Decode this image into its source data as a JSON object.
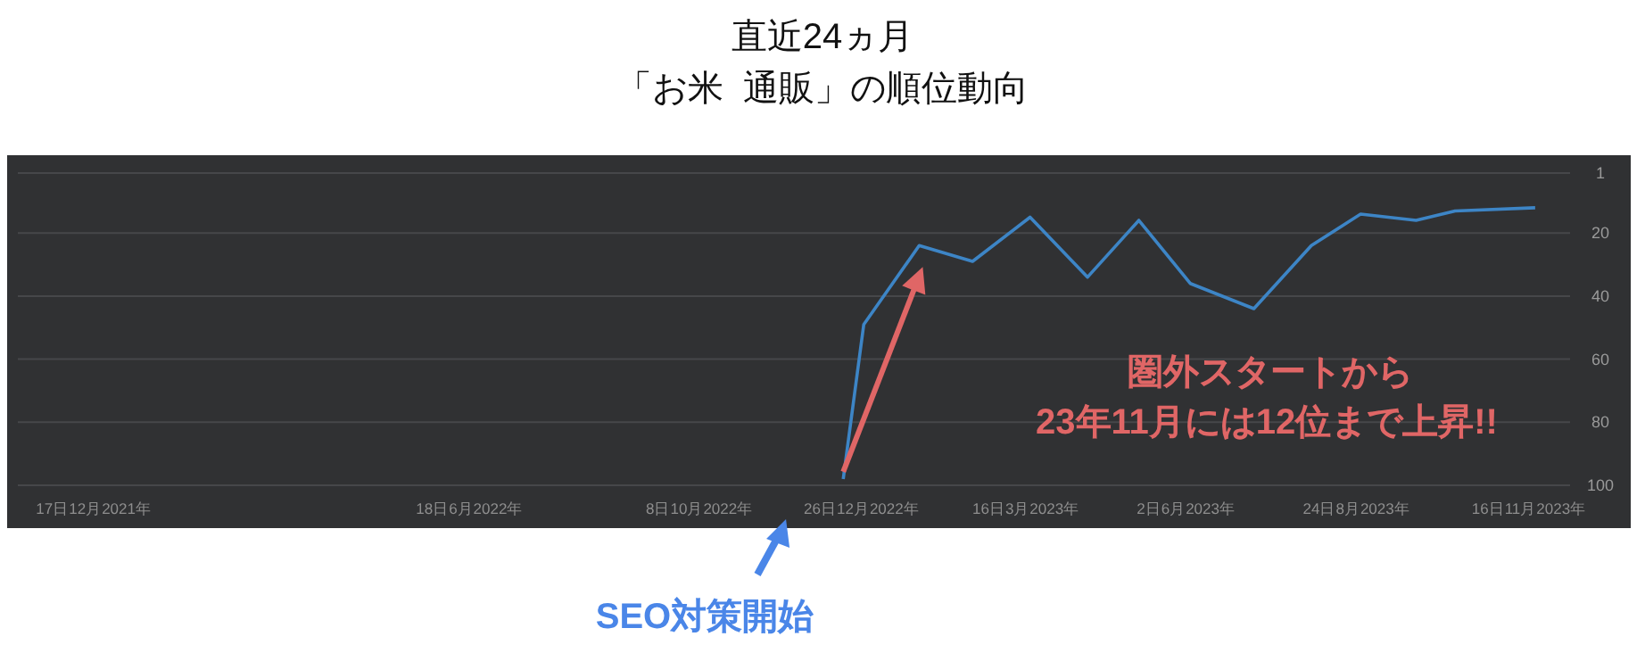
{
  "chart_data": {
    "type": "line",
    "title": "直近24ヵ月",
    "subtitle": "「お米  通販」の順位動向",
    "x": [
      "2022-12-17",
      "2022-12-27",
      "2023-01-23",
      "2023-02-18",
      "2023-03-18",
      "2023-04-15",
      "2023-05-10",
      "2023-06-04",
      "2023-07-05",
      "2023-08-02",
      "2023-08-26",
      "2023-09-22",
      "2023-10-11",
      "2023-11-19"
    ],
    "series": [
      {
        "color": "#3d85c6",
        "values": [
          98,
          49,
          24,
          29,
          15,
          34,
          16,
          36,
          44,
          24,
          14,
          16,
          13,
          12
        ]
      }
    ],
    "xlim": [
      "2021-11-10",
      "2023-12-06"
    ],
    "xticks": [
      {
        "value": "2021-12-17",
        "label": "17日12月2021年"
      },
      {
        "value": "2022-06-18",
        "label": "18日6月2022年"
      },
      {
        "value": "2022-10-08",
        "label": "8日10月2022年"
      },
      {
        "value": "2022-12-26",
        "label": "26日12月2022年"
      },
      {
        "value": "2023-03-16",
        "label": "16日3月2023年"
      },
      {
        "value": "2023-06-02",
        "label": "2日6月2023年"
      },
      {
        "value": "2023-08-24",
        "label": "24日8月2023年"
      },
      {
        "value": "2023-11-16",
        "label": "16日11月2023年"
      }
    ],
    "ylim": [
      100,
      1
    ],
    "yticks": [
      1,
      20,
      40,
      60,
      80,
      100
    ],
    "grid": "y",
    "marker": "none",
    "line_style": "solid",
    "annotations": [
      "圏外スタートから\n23年11月には12位まで上昇!!",
      "SEO対策開始"
    ]
  }
}
